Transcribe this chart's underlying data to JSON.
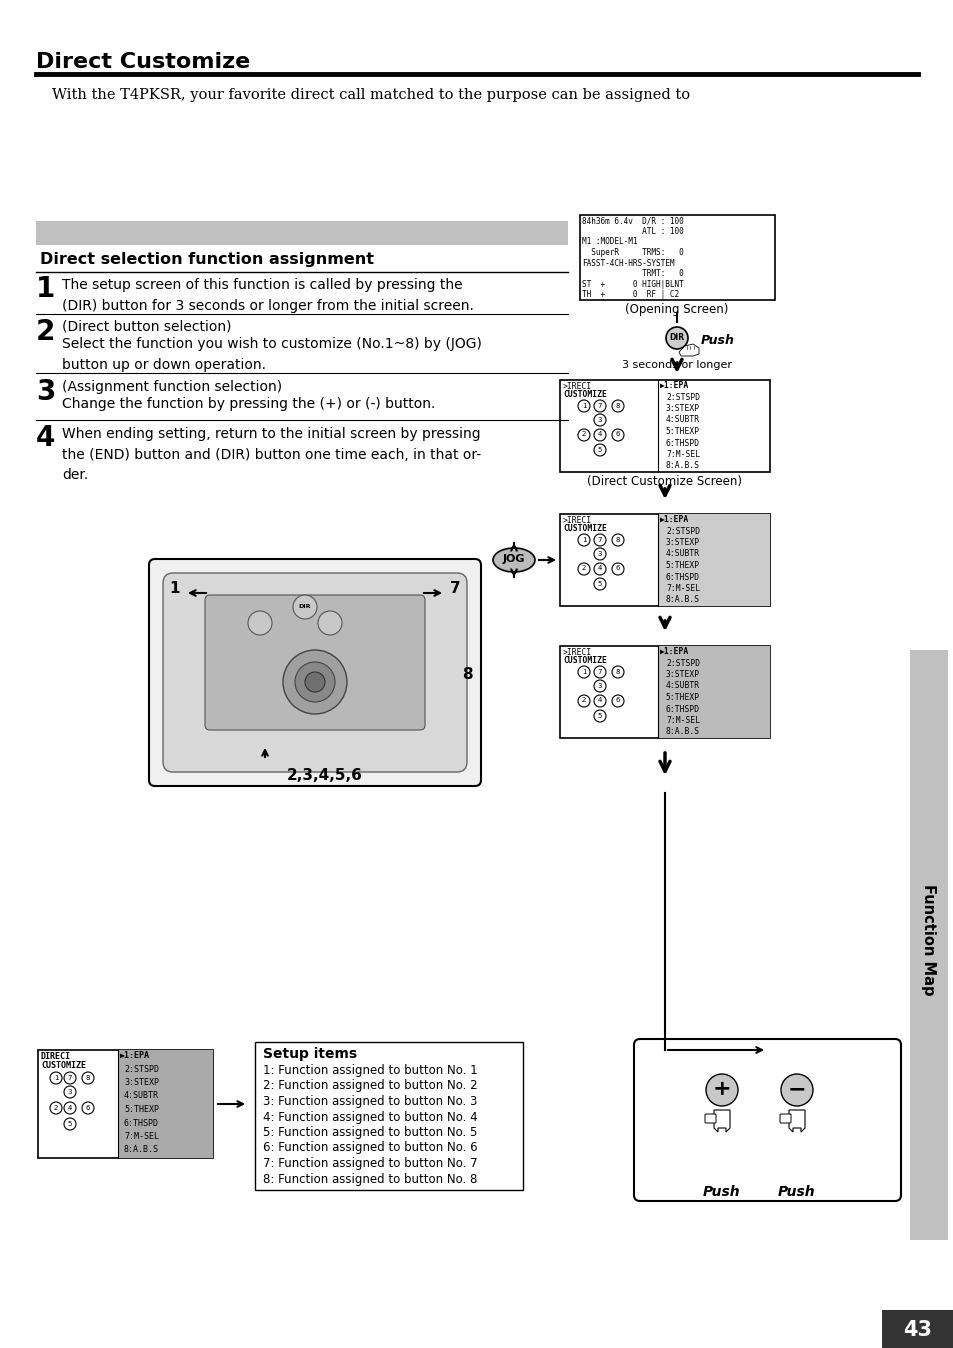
{
  "title": "Direct Customize",
  "subtitle": "With the T4PKSR, your favorite direct call matched to the purpose can be assigned to",
  "section_title": "Direct selection function assignment",
  "steps": [
    {
      "num": "1",
      "text": "The setup screen of this function is called by pressing the\n(DIR) button for 3 seconds or longer from the initial screen."
    },
    {
      "num": "2",
      "bold": "(Direct button selection)",
      "text": "Select the function you wish to customize (No.1~8) by (JOG)\nbutton up or down operation."
    },
    {
      "num": "3",
      "bold": "(Assignment function selection)",
      "text": "Change the function by pressing the (+) or (-) button."
    },
    {
      "num": "4",
      "text": "When ending setting, return to the initial screen by pressing\nthe (END) button and (DIR) button one time each, in that or-\nder."
    }
  ],
  "setup_items_title": "Setup items",
  "setup_items": [
    "1: Function assigned to button No. 1",
    "2: Function assigned to button No. 2",
    "3: Function assigned to button No. 3",
    "4: Function assigned to button No. 4",
    "5: Function assigned to button No. 5",
    "6: Function assigned to button No. 6",
    "7: Function assigned to button No. 7",
    "8: Function assigned to button No. 8"
  ],
  "page_number": "43",
  "sidebar_text": "Function Map",
  "bg_color": "#ffffff",
  "sidebar_color": "#c0c0c0",
  "header_bar_color": "#c0c0c0"
}
